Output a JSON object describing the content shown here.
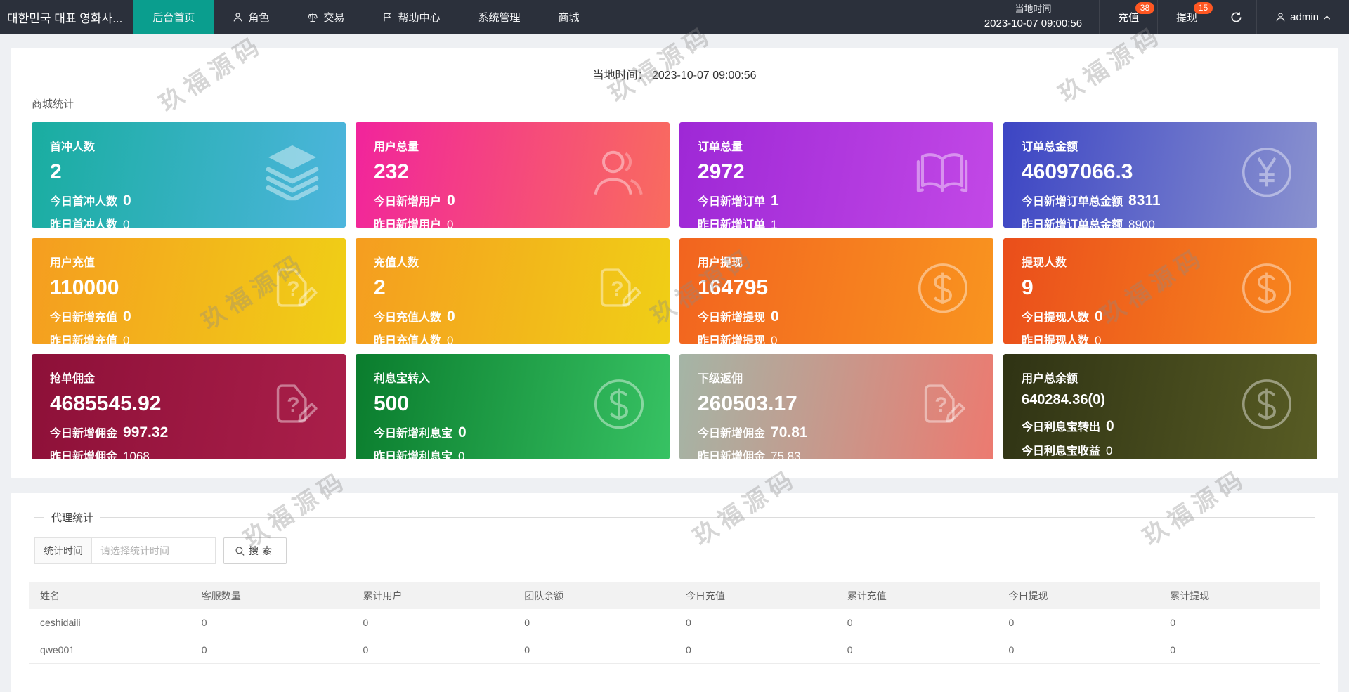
{
  "navbar": {
    "brand": "대한민국 대표 영화사...",
    "tabs": [
      {
        "name": "home",
        "label": "后台首页",
        "icon": null,
        "active": true
      },
      {
        "name": "roles",
        "label": "角色",
        "icon": "user",
        "active": false
      },
      {
        "name": "trade",
        "label": "交易",
        "icon": "scales",
        "active": false
      },
      {
        "name": "help",
        "label": "帮助中心",
        "icon": "flag",
        "active": false
      },
      {
        "name": "system",
        "label": "系统管理",
        "icon": null,
        "active": false
      },
      {
        "name": "mall",
        "label": "商城",
        "icon": null,
        "active": false
      }
    ],
    "local_time_label": "当地时间",
    "local_time_value": "2023-10-07 09:00:56",
    "recharge": {
      "label": "充值",
      "badge": "38"
    },
    "withdraw": {
      "label": "提现",
      "badge": "15"
    },
    "user": {
      "name": "admin"
    }
  },
  "overview": {
    "local_time_label": "当地时间：",
    "local_time_value": "2023-10-07 09:00:56",
    "section_title": "商城统计",
    "cards": [
      {
        "title": "首冲人数",
        "value": "2",
        "today_label": "今日首冲人数",
        "today_value": "0",
        "yesterday_label": "昨日首冲人数",
        "yesterday_value": "0",
        "icon": "layers",
        "gradient": [
          "#19ada0",
          "#4db5dd"
        ],
        "compact": false
      },
      {
        "title": "用户总量",
        "value": "232",
        "today_label": "今日新增用户",
        "today_value": "0",
        "yesterday_label": "昨日新增用户",
        "yesterday_value": "0",
        "icon": "users",
        "gradient": [
          "#f1249c",
          "#f96c5e"
        ],
        "compact": false
      },
      {
        "title": "订单总量",
        "value": "2972",
        "today_label": "今日新增订单",
        "today_value": "1",
        "yesterday_label": "昨日新增订单",
        "yesterday_value": "1",
        "icon": "book",
        "gradient": [
          "#9e28d6",
          "#c248e6"
        ],
        "compact": false
      },
      {
        "title": "订单总金额",
        "value": "46097066.3",
        "today_label": "今日新增订单总金额",
        "today_value": "8311",
        "yesterday_label": "昨日新增订单总金额",
        "yesterday_value": "8900",
        "icon": "yen",
        "gradient": [
          "#3c45c4",
          "#8a92cf"
        ],
        "compact": false
      },
      {
        "title": "用户充值",
        "value": "110000",
        "today_label": "今日新增充值",
        "today_value": "0",
        "yesterday_label": "昨日新增充值",
        "yesterday_value": "0",
        "icon": "docedit",
        "gradient": [
          "#f59d20",
          "#f0cf16"
        ],
        "compact": false
      },
      {
        "title": "充值人数",
        "value": "2",
        "today_label": "今日充值人数",
        "today_value": "0",
        "yesterday_label": "昨日充值人数",
        "yesterday_value": "0",
        "icon": "docedit",
        "gradient": [
          "#f59d20",
          "#f0cf16"
        ],
        "compact": false
      },
      {
        "title": "用户提现",
        "value": "164795",
        "today_label": "今日新增提现",
        "today_value": "0",
        "yesterday_label": "昨日新增提现",
        "yesterday_value": "0",
        "icon": "dollar",
        "gradient": [
          "#f2641f",
          "#f9941f"
        ],
        "compact": false
      },
      {
        "title": "提现人数",
        "value": "9",
        "today_label": "今日提现人数",
        "today_value": "0",
        "yesterday_label": "昨日提现人数",
        "yesterday_value": "0",
        "icon": "dollar",
        "gradient": [
          "#ea4e1b",
          "#f8891e"
        ],
        "compact": false
      },
      {
        "title": "抢单佣金",
        "value": "4685545.92",
        "today_label": "今日新增佣金",
        "today_value": "997.32",
        "yesterday_label": "昨日新增佣金",
        "yesterday_value": "1068",
        "icon": "docedit",
        "gradient": [
          "#8d1038",
          "#aa1f4a"
        ],
        "compact": false
      },
      {
        "title": "利息宝转入",
        "value": "500",
        "today_label": "今日新增利息宝",
        "today_value": "0",
        "yesterday_label": "昨日新增利息宝",
        "yesterday_value": "0",
        "icon": "dollar",
        "gradient": [
          "#0a7c2d",
          "#37c263"
        ],
        "compact": false
      },
      {
        "title": "下级返佣",
        "value": "260503.17",
        "today_label": "今日新增佣金",
        "today_value": "70.81",
        "yesterday_label": "昨日新增佣金",
        "yesterday_value": "75.83",
        "icon": "docedit",
        "gradient": [
          "#a4b5a6",
          "#ec7a70"
        ],
        "compact": false
      },
      {
        "title": "用户总余额",
        "value": "640284.36(0)",
        "today_label": "今日利息宝转出",
        "today_value": "0",
        "yesterday_label": "今日利息宝收益",
        "yesterday_value": "0",
        "icon": "dollar",
        "gradient": [
          "#2f3314",
          "#585c24"
        ],
        "compact": true
      }
    ]
  },
  "agent": {
    "section_title": "代理统计",
    "time_label": "统计时间",
    "time_placeholder": "请选择统计时间",
    "search_label": "搜索",
    "table": {
      "headers": [
        "姓名",
        "客服数量",
        "累计用户",
        "团队余额",
        "今日充值",
        "累计充值",
        "今日提现",
        "累计提现"
      ],
      "rows": [
        [
          "ceshidaili",
          "0",
          "0",
          "0",
          "0",
          "0",
          "0",
          "0"
        ],
        [
          "qwe001",
          "0",
          "0",
          "0",
          "0",
          "0",
          "0",
          "0"
        ]
      ]
    }
  },
  "watermark_text": "玖福源码",
  "colors": {
    "navbar_bg": "#2b303b",
    "active_tab": "#0a9e8e",
    "badge": "#ff5722",
    "page_bg": "#eef0f3"
  }
}
